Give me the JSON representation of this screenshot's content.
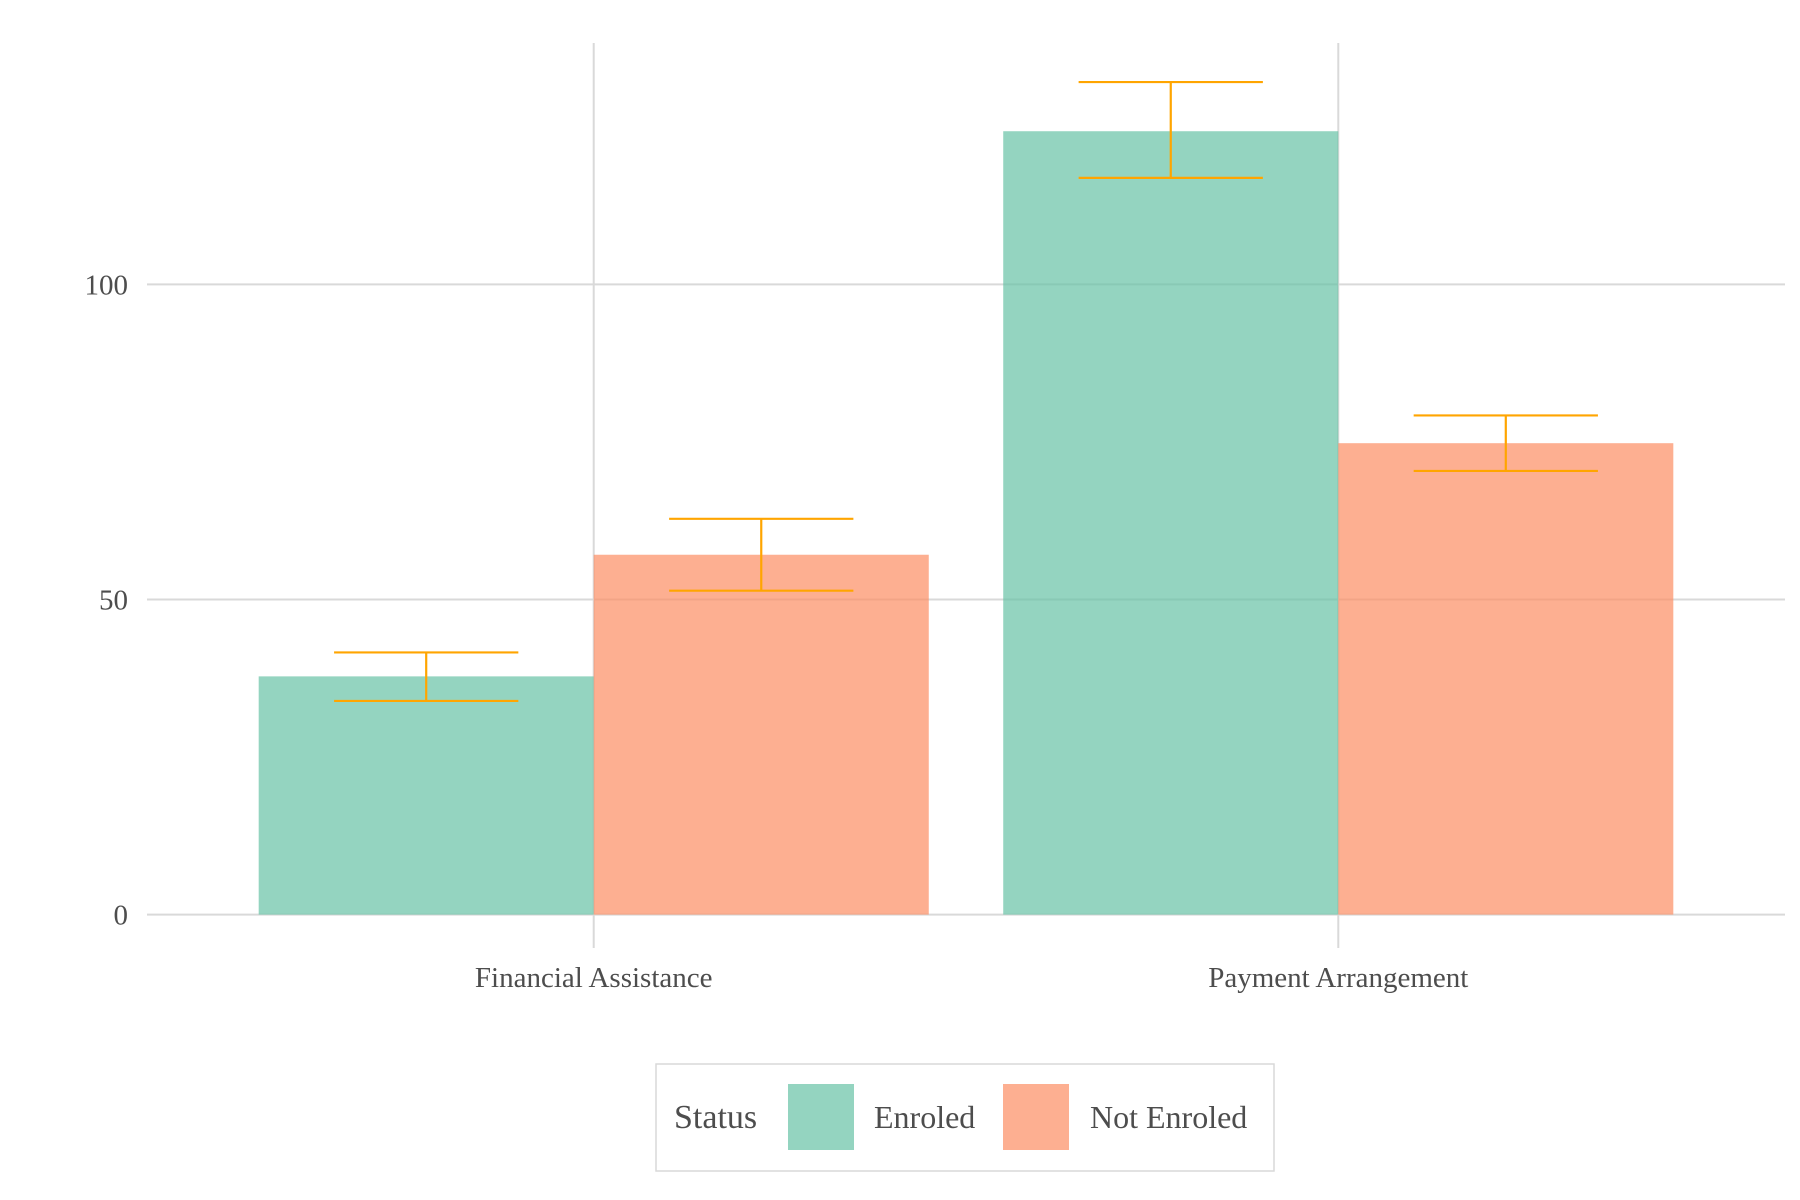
{
  "chart_data": {
    "type": "bar",
    "title": "",
    "xlabel": "",
    "ylabel": "",
    "categories": [
      "Financial Assistance",
      "Payment Arrangement"
    ],
    "series": [
      {
        "name": "Enroled",
        "color": "#66c2a5",
        "values": [
          37.8,
          124.3
        ],
        "error_low": [
          33.9,
          116.9
        ],
        "error_high": [
          41.6,
          132.1
        ]
      },
      {
        "name": "Not Enroled",
        "color": "#fc8d62",
        "values": [
          57.1,
          74.8
        ],
        "error_low": [
          51.4,
          70.4
        ],
        "error_high": [
          62.8,
          79.2
        ]
      }
    ],
    "ylim": [
      -5.3,
      138.3
    ],
    "yticks": [
      0,
      50,
      100
    ],
    "error_bar_color": "#ffa500",
    "grid": true,
    "legend": {
      "title": "Status",
      "position": "bottom"
    }
  }
}
